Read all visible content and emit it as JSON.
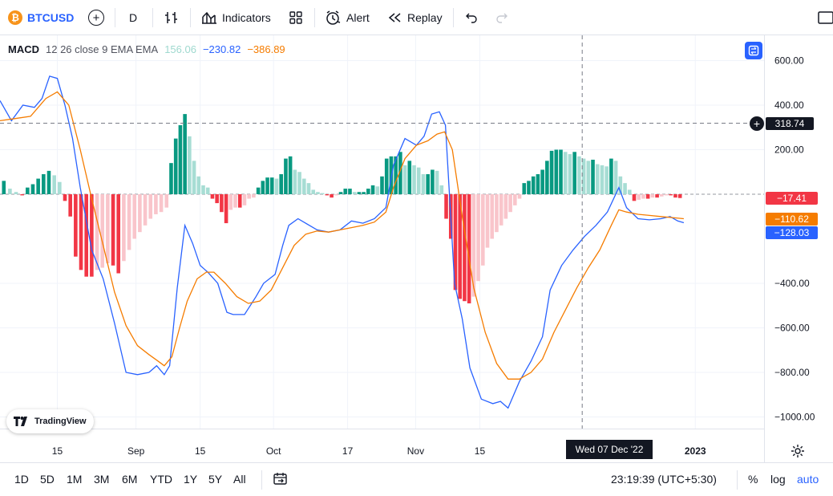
{
  "toolbar": {
    "symbol": "BTCUSD",
    "coin_glyph": "₿",
    "interval": "D",
    "indicators_label": "Indicators",
    "alert_label": "Alert",
    "replay_label": "Replay"
  },
  "legend": {
    "name": "MACD",
    "params": "12 26 close 9 EMA EMA",
    "hist_value": "156.06",
    "macd_value": "−230.82",
    "signal_value": "−386.89"
  },
  "price_tags": {
    "crosshair": "318.74",
    "hist": "−17.41",
    "signal": "−110.62",
    "macd": "−128.03"
  },
  "crosshair_date": "Wed 07 Dec '22",
  "watermark": "TradingView",
  "bottom_bar": {
    "ranges": [
      "1D",
      "5D",
      "1M",
      "3M",
      "6M",
      "YTD",
      "1Y",
      "5Y",
      "All"
    ],
    "clock": "23:19:39 (UTC+5:30)",
    "percent_label": "%",
    "log_label": "log",
    "auto_label": "auto"
  },
  "colors": {
    "macd": "#2962ff",
    "signal": "#f57c00",
    "hist_pos_strong": "#089981",
    "hist_pos_weak": "#a7ddd4",
    "hist_neg_strong": "#f23645",
    "hist_neg_weak": "#f9c5cb",
    "axis_text": "#131722",
    "brand": "#2962ff"
  },
  "chart_data": {
    "type": "line",
    "title": "MACD 12 26 close 9 EMA EMA",
    "x_range": [
      0,
      1
    ],
    "ylim": [
      -1080,
      640
    ],
    "y_ticks": [
      600,
      400,
      200,
      -400,
      -600,
      -800,
      -1000
    ],
    "y_tick_labels": [
      "600.00",
      "400.00",
      "200.00",
      "−400.00",
      "−600.00",
      "−800.00",
      "−1000.00"
    ],
    "x_ticks": [
      {
        "label": "15",
        "x": 0.075
      },
      {
        "label": "Sep",
        "x": 0.178
      },
      {
        "label": "15",
        "x": 0.262
      },
      {
        "label": "Oct",
        "x": 0.358
      },
      {
        "label": "17",
        "x": 0.455
      },
      {
        "label": "Nov",
        "x": 0.544
      },
      {
        "label": "15",
        "x": 0.628
      },
      {
        "label": "2023",
        "x": 0.91
      }
    ],
    "crosshair": {
      "x": 0.762,
      "y": 318.74
    },
    "series": [
      {
        "name": "MACD",
        "points": [
          [
            0,
            420
          ],
          [
            0.015,
            330
          ],
          [
            0.03,
            400
          ],
          [
            0.045,
            390
          ],
          [
            0.055,
            430
          ],
          [
            0.065,
            530
          ],
          [
            0.075,
            520
          ],
          [
            0.085,
            400
          ],
          [
            0.095,
            250
          ],
          [
            0.105,
            30
          ],
          [
            0.12,
            -250
          ],
          [
            0.135,
            -380
          ],
          [
            0.15,
            -580
          ],
          [
            0.165,
            -800
          ],
          [
            0.18,
            -810
          ],
          [
            0.195,
            -800
          ],
          [
            0.205,
            -770
          ],
          [
            0.215,
            -810
          ],
          [
            0.222,
            -770
          ],
          [
            0.232,
            -420
          ],
          [
            0.242,
            -140
          ],
          [
            0.252,
            -220
          ],
          [
            0.262,
            -320
          ],
          [
            0.272,
            -350
          ],
          [
            0.285,
            -400
          ],
          [
            0.297,
            -530
          ],
          [
            0.305,
            -540
          ],
          [
            0.32,
            -540
          ],
          [
            0.335,
            -460
          ],
          [
            0.345,
            -400
          ],
          [
            0.36,
            -360
          ],
          [
            0.37,
            -230
          ],
          [
            0.378,
            -140
          ],
          [
            0.39,
            -110
          ],
          [
            0.4,
            -130
          ],
          [
            0.415,
            -160
          ],
          [
            0.43,
            -170
          ],
          [
            0.445,
            -160
          ],
          [
            0.46,
            -120
          ],
          [
            0.475,
            -130
          ],
          [
            0.49,
            -110
          ],
          [
            0.505,
            -60
          ],
          [
            0.515,
            130
          ],
          [
            0.53,
            250
          ],
          [
            0.545,
            220
          ],
          [
            0.555,
            260
          ],
          [
            0.565,
            360
          ],
          [
            0.575,
            370
          ],
          [
            0.583,
            310
          ],
          [
            0.595,
            -400
          ],
          [
            0.605,
            -560
          ],
          [
            0.615,
            -780
          ],
          [
            0.63,
            -920
          ],
          [
            0.645,
            -940
          ],
          [
            0.655,
            -930
          ],
          [
            0.665,
            -960
          ],
          [
            0.68,
            -840
          ],
          [
            0.695,
            -750
          ],
          [
            0.71,
            -640
          ],
          [
            0.72,
            -430
          ],
          [
            0.735,
            -320
          ],
          [
            0.75,
            -250
          ],
          [
            0.765,
            -190
          ],
          [
            0.78,
            -140
          ],
          [
            0.795,
            -80
          ],
          [
            0.81,
            30
          ],
          [
            0.82,
            -60
          ],
          [
            0.835,
            -110
          ],
          [
            0.85,
            -115
          ],
          [
            0.865,
            -110
          ],
          [
            0.877,
            -100
          ],
          [
            0.887,
            -120
          ],
          [
            0.895,
            -128
          ]
        ]
      },
      {
        "name": "Signal",
        "points": [
          [
            0,
            330
          ],
          [
            0.02,
            340
          ],
          [
            0.04,
            350
          ],
          [
            0.06,
            430
          ],
          [
            0.075,
            460
          ],
          [
            0.09,
            400
          ],
          [
            0.105,
            200
          ],
          [
            0.12,
            -20
          ],
          [
            0.135,
            -230
          ],
          [
            0.15,
            -440
          ],
          [
            0.165,
            -590
          ],
          [
            0.18,
            -680
          ],
          [
            0.195,
            -720
          ],
          [
            0.205,
            -745
          ],
          [
            0.215,
            -770
          ],
          [
            0.225,
            -730
          ],
          [
            0.235,
            -600
          ],
          [
            0.245,
            -480
          ],
          [
            0.258,
            -380
          ],
          [
            0.27,
            -350
          ],
          [
            0.28,
            -350
          ],
          [
            0.295,
            -400
          ],
          [
            0.31,
            -460
          ],
          [
            0.325,
            -490
          ],
          [
            0.34,
            -480
          ],
          [
            0.355,
            -430
          ],
          [
            0.37,
            -330
          ],
          [
            0.385,
            -230
          ],
          [
            0.4,
            -180
          ],
          [
            0.415,
            -165
          ],
          [
            0.43,
            -170
          ],
          [
            0.445,
            -160
          ],
          [
            0.46,
            -150
          ],
          [
            0.475,
            -140
          ],
          [
            0.49,
            -125
          ],
          [
            0.505,
            -80
          ],
          [
            0.515,
            30
          ],
          [
            0.53,
            160
          ],
          [
            0.545,
            220
          ],
          [
            0.56,
            240
          ],
          [
            0.572,
            270
          ],
          [
            0.582,
            280
          ],
          [
            0.592,
            200
          ],
          [
            0.605,
            -100
          ],
          [
            0.62,
            -420
          ],
          [
            0.635,
            -620
          ],
          [
            0.65,
            -760
          ],
          [
            0.665,
            -830
          ],
          [
            0.68,
            -830
          ],
          [
            0.695,
            -800
          ],
          [
            0.71,
            -740
          ],
          [
            0.725,
            -620
          ],
          [
            0.74,
            -520
          ],
          [
            0.755,
            -420
          ],
          [
            0.77,
            -330
          ],
          [
            0.785,
            -250
          ],
          [
            0.8,
            -140
          ],
          [
            0.81,
            -70
          ],
          [
            0.82,
            -80
          ],
          [
            0.835,
            -90
          ],
          [
            0.85,
            -95
          ],
          [
            0.865,
            -100
          ],
          [
            0.88,
            -105
          ],
          [
            0.895,
            -110
          ]
        ]
      }
    ],
    "histogram": {
      "points": [
        [
          0.005,
          60
        ],
        [
          0.013,
          25
        ],
        [
          0.021,
          10
        ],
        [
          0.029,
          -5
        ],
        [
          0.036,
          30
        ],
        [
          0.043,
          45
        ],
        [
          0.05,
          70
        ],
        [
          0.057,
          90
        ],
        [
          0.064,
          105
        ],
        [
          0.071,
          85
        ],
        [
          0.078,
          55
        ],
        [
          0.085,
          -30
        ],
        [
          0.092,
          -100
        ],
        [
          0.099,
          -280
        ],
        [
          0.106,
          -340
        ],
        [
          0.113,
          -370
        ],
        [
          0.12,
          -370
        ],
        [
          0.127,
          -340
        ],
        [
          0.134,
          -330
        ],
        [
          0.141,
          -310
        ],
        [
          0.148,
          -320
        ],
        [
          0.155,
          -355
        ],
        [
          0.162,
          -300
        ],
        [
          0.169,
          -250
        ],
        [
          0.176,
          -200
        ],
        [
          0.183,
          -170
        ],
        [
          0.19,
          -140
        ],
        [
          0.197,
          -110
        ],
        [
          0.204,
          -90
        ],
        [
          0.211,
          -80
        ],
        [
          0.218,
          -60
        ],
        [
          0.224,
          140
        ],
        [
          0.23,
          250
        ],
        [
          0.236,
          310
        ],
        [
          0.242,
          360
        ],
        [
          0.248,
          260
        ],
        [
          0.254,
          150
        ],
        [
          0.26,
          80
        ],
        [
          0.266,
          40
        ],
        [
          0.272,
          30
        ],
        [
          0.278,
          -20
        ],
        [
          0.284,
          -40
        ],
        [
          0.29,
          -80
        ],
        [
          0.296,
          -130
        ],
        [
          0.302,
          -70
        ],
        [
          0.308,
          -60
        ],
        [
          0.314,
          -60
        ],
        [
          0.32,
          -50
        ],
        [
          0.326,
          -20
        ],
        [
          0.332,
          -15
        ],
        [
          0.338,
          30
        ],
        [
          0.344,
          60
        ],
        [
          0.35,
          75
        ],
        [
          0.356,
          75
        ],
        [
          0.362,
          70
        ],
        [
          0.368,
          90
        ],
        [
          0.374,
          160
        ],
        [
          0.38,
          170
        ],
        [
          0.386,
          110
        ],
        [
          0.392,
          100
        ],
        [
          0.398,
          70
        ],
        [
          0.404,
          50
        ],
        [
          0.41,
          20
        ],
        [
          0.416,
          10
        ],
        [
          0.422,
          5
        ],
        [
          0.428,
          -5
        ],
        [
          0.434,
          -15
        ],
        [
          0.44,
          -5
        ],
        [
          0.446,
          10
        ],
        [
          0.452,
          25
        ],
        [
          0.458,
          25
        ],
        [
          0.464,
          10
        ],
        [
          0.47,
          10
        ],
        [
          0.476,
          10
        ],
        [
          0.482,
          25
        ],
        [
          0.488,
          40
        ],
        [
          0.494,
          35
        ],
        [
          0.5,
          80
        ],
        [
          0.506,
          160
        ],
        [
          0.512,
          170
        ],
        [
          0.518,
          170
        ],
        [
          0.524,
          190
        ],
        [
          0.53,
          130
        ],
        [
          0.536,
          150
        ],
        [
          0.542,
          130
        ],
        [
          0.548,
          120
        ],
        [
          0.554,
          90
        ],
        [
          0.56,
          90
        ],
        [
          0.566,
          110
        ],
        [
          0.572,
          105
        ],
        [
          0.578,
          40
        ],
        [
          0.584,
          -110
        ],
        [
          0.59,
          -200
        ],
        [
          0.596,
          -430
        ],
        [
          0.602,
          -470
        ],
        [
          0.608,
          -480
        ],
        [
          0.614,
          -490
        ],
        [
          0.62,
          -460
        ],
        [
          0.626,
          -390
        ],
        [
          0.632,
          -320
        ],
        [
          0.638,
          -240
        ],
        [
          0.644,
          -200
        ],
        [
          0.65,
          -170
        ],
        [
          0.656,
          -140
        ],
        [
          0.662,
          -110
        ],
        [
          0.668,
          -80
        ],
        [
          0.674,
          -50
        ],
        [
          0.68,
          -20
        ],
        [
          0.686,
          50
        ],
        [
          0.692,
          60
        ],
        [
          0.698,
          80
        ],
        [
          0.704,
          90
        ],
        [
          0.71,
          110
        ],
        [
          0.716,
          150
        ],
        [
          0.722,
          195
        ],
        [
          0.728,
          200
        ],
        [
          0.734,
          200
        ],
        [
          0.74,
          190
        ],
        [
          0.746,
          180
        ],
        [
          0.752,
          190
        ],
        [
          0.758,
          170
        ],
        [
          0.764,
          160
        ],
        [
          0.77,
          150
        ],
        [
          0.776,
          155
        ],
        [
          0.782,
          135
        ],
        [
          0.788,
          130
        ],
        [
          0.794,
          125
        ],
        [
          0.8,
          160
        ],
        [
          0.806,
          150
        ],
        [
          0.812,
          80
        ],
        [
          0.818,
          50
        ],
        [
          0.824,
          20
        ],
        [
          0.83,
          -30
        ],
        [
          0.836,
          -25
        ],
        [
          0.842,
          -20
        ],
        [
          0.848,
          -20
        ],
        [
          0.854,
          -15
        ],
        [
          0.86,
          -15
        ],
        [
          0.866,
          -10
        ],
        [
          0.872,
          -5
        ],
        [
          0.878,
          -5
        ],
        [
          0.884,
          -15
        ],
        [
          0.89,
          -17
        ]
      ]
    }
  }
}
